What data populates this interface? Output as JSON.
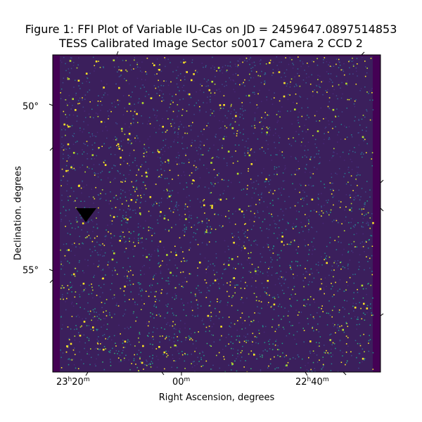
{
  "figure": {
    "title_line1": "Figure 1: FFI Plot of Variable IU-Cas on JD = 2459647.0897514853",
    "title_line2": "TESS Calibrated Image Sector s0017 Camera 2 CCD 2",
    "xlabel": "Right Ascension, degrees",
    "ylabel": "Declination. degrees",
    "x_ticks": [
      {
        "h": "23",
        "m": "20"
      },
      {
        "h": "",
        "m": "00"
      },
      {
        "h": "22",
        "m": "40"
      }
    ],
    "y_ticks": [
      "50°",
      "55°"
    ],
    "colormap": "viridis",
    "marker": "target-marker-triangle"
  },
  "colors": {
    "background": "#3b1f5c",
    "edge": "#440154",
    "star": "#fde725",
    "mid": "#21918c",
    "marker": "#000000"
  }
}
